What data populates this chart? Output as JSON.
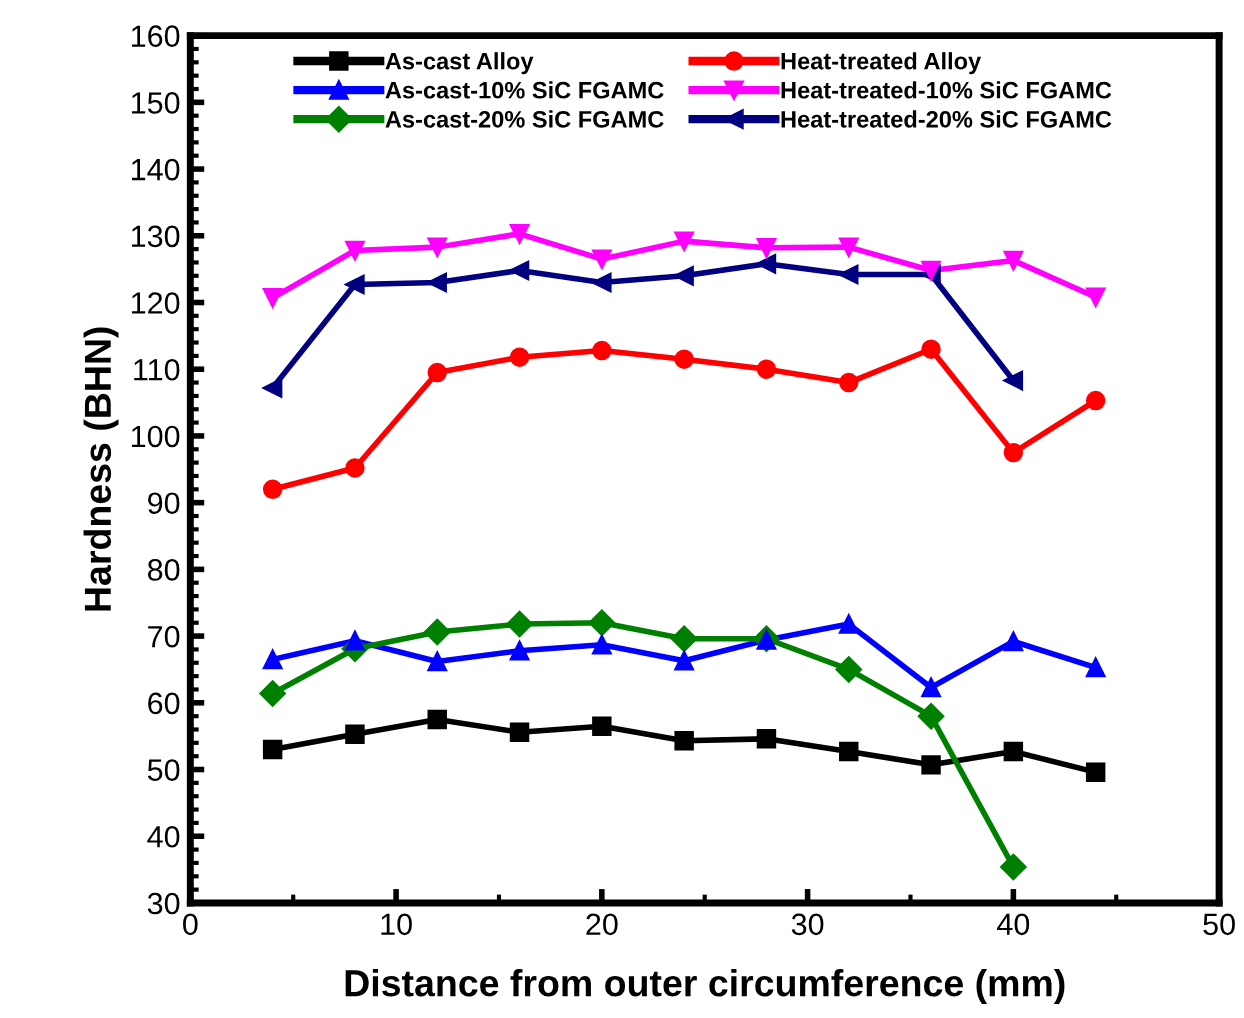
{
  "chart_data": {
    "type": "line",
    "xlabel": "Distance from outer circumference (mm)",
    "ylabel": "Hardness (BHN)",
    "xlim": [
      0,
      50
    ],
    "xticks": [
      0,
      10,
      20,
      30,
      40,
      50
    ],
    "ylim": [
      30,
      160
    ],
    "yticks": [
      30,
      40,
      50,
      60,
      70,
      80,
      90,
      100,
      110,
      120,
      130,
      140,
      150,
      160
    ],
    "grid": false,
    "legend": "top",
    "line_style": "solid",
    "x": [
      4,
      8,
      12,
      16,
      20,
      24,
      28,
      32,
      36,
      40,
      44
    ],
    "series": [
      {
        "name": "As-cast Alloy",
        "color": "#000000",
        "marker": "square",
        "values": [
          53,
          55.3,
          57.5,
          55.6,
          56.5,
          54.3,
          54.6,
          52.7,
          50.7,
          52.7,
          49.6
        ]
      },
      {
        "name": "Heat-treated Alloy",
        "color": "#ff0000",
        "marker": "circle",
        "values": [
          92,
          95.2,
          109.5,
          111.8,
          112.8,
          111.5,
          110,
          108,
          113,
          97.5,
          105.3
        ]
      },
      {
        "name": "As-cast-10% SiC FGAMC",
        "color": "#0000ff",
        "marker": "triangle",
        "values": [
          66.5,
          69.3,
          66.2,
          67.8,
          68.7,
          66.3,
          69.4,
          71.8,
          62.3,
          69.2,
          65.3
        ]
      },
      {
        "name": "Heat-treated-10% SiC FGAMC",
        "color": "#ff00ff",
        "marker": "triangle_down",
        "values": [
          120.7,
          127.8,
          128.3,
          130.3,
          126.5,
          129.2,
          128.2,
          128.3,
          124.8,
          126.3,
          120.8
        ]
      },
      {
        "name": "As-cast-20% SiC FGAMC",
        "color": "#008000",
        "marker": "diamond",
        "values": [
          61.4,
          68.1,
          70.6,
          71.8,
          72,
          69.6,
          69.6,
          65,
          58,
          35.4,
          null
        ]
      },
      {
        "name": "Heat-treated-20% SiC FGAMC",
        "color": "#000080",
        "marker": "triangle_left",
        "values": [
          107.2,
          122.7,
          123,
          124.8,
          123,
          124,
          125.8,
          124.2,
          124.2,
          108.3,
          null
        ]
      }
    ]
  }
}
